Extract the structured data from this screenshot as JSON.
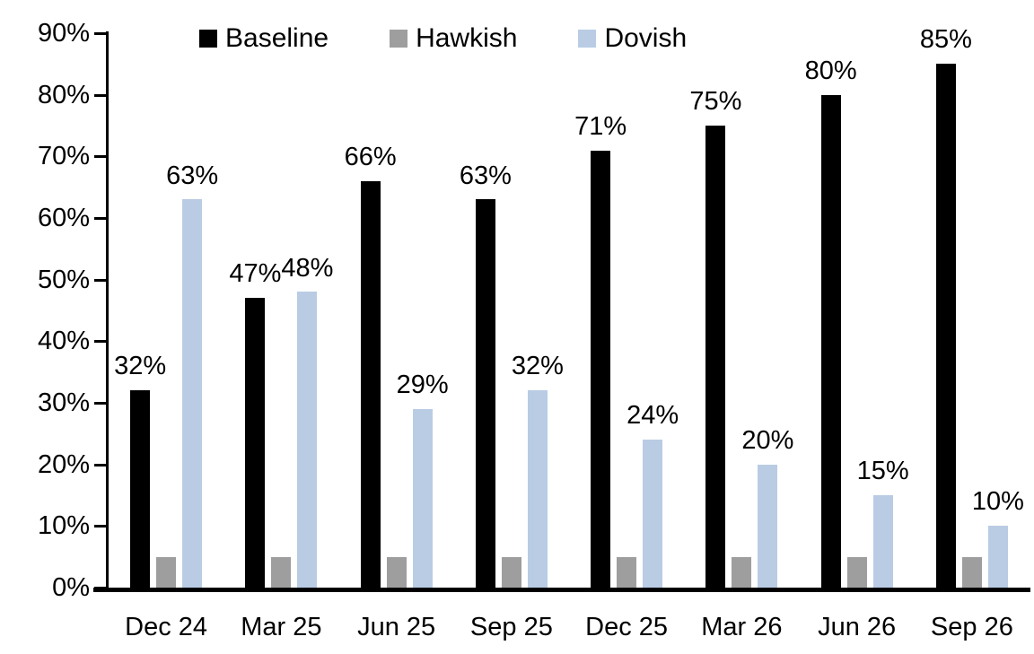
{
  "chart_data": {
    "type": "bar",
    "title": "",
    "categories": [
      "Dec 24",
      "Mar 25",
      "Jun 25",
      "Sep 25",
      "Dec 25",
      "Mar 26",
      "Jun 26",
      "Sep 26"
    ],
    "series": [
      {
        "name": "Baseline",
        "color": "#000000",
        "values": [
          32,
          47,
          66,
          63,
          71,
          75,
          80,
          85
        ],
        "labels": [
          "32%",
          "47%",
          "66%",
          "63%",
          "71%",
          "75%",
          "80%",
          "85%"
        ]
      },
      {
        "name": "Hawkish",
        "color": "#9E9E9E",
        "values": [
          5,
          5,
          5,
          5,
          5,
          5,
          5,
          5
        ],
        "labels": [
          null,
          null,
          null,
          null,
          null,
          null,
          null,
          null
        ]
      },
      {
        "name": "Dovish",
        "color": "#B9CCE4",
        "values": [
          63,
          48,
          29,
          32,
          24,
          20,
          15,
          10
        ],
        "labels": [
          "63%",
          "48%",
          "29%",
          "32%",
          "24%",
          "20%",
          "15%",
          "10%"
        ]
      }
    ],
    "xlabel": "",
    "ylabel": "",
    "ylim": [
      0,
      90
    ],
    "ytick_step": 10,
    "ytick_labels": [
      "0%",
      "10%",
      "20%",
      "30%",
      "40%",
      "50%",
      "60%",
      "70%",
      "80%",
      "90%"
    ],
    "legend_position": "top",
    "grid": false,
    "axis_color": "#000000",
    "background_color": "#FFFFFF"
  }
}
